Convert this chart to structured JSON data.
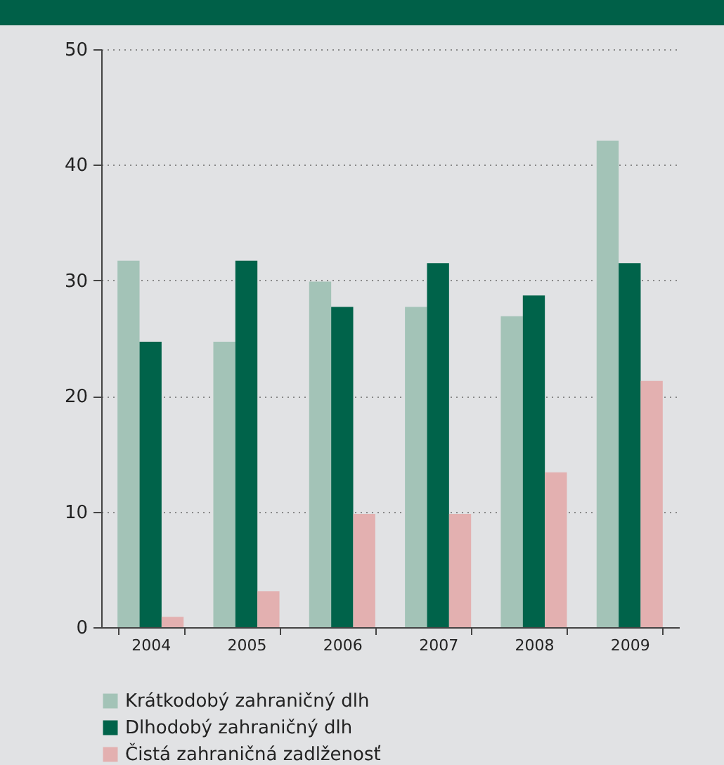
{
  "chart_data": {
    "type": "bar",
    "categories": [
      "2004",
      "2005",
      "2006",
      "2007",
      "2008",
      "2009"
    ],
    "series": [
      {
        "name": "Krátkodobý zahraničný dlh",
        "color": "#a3c3b7",
        "values": [
          31.7,
          24.7,
          29.9,
          27.7,
          26.9,
          42.1
        ]
      },
      {
        "name": "Dlhodobý zahraničný dlh",
        "color": "#00634a",
        "values": [
          24.7,
          31.7,
          27.7,
          31.5,
          28.7,
          31.5
        ]
      },
      {
        "name": "Čistá zahraničná zadlženosť",
        "color": "#e3b0b0",
        "values": [
          0.9,
          3.1,
          9.8,
          9.8,
          13.4,
          21.3
        ]
      }
    ],
    "ylim": [
      0,
      50
    ],
    "yticks": [
      0,
      10,
      20,
      30,
      40,
      50
    ],
    "grid": "y",
    "legend": "bottom"
  }
}
